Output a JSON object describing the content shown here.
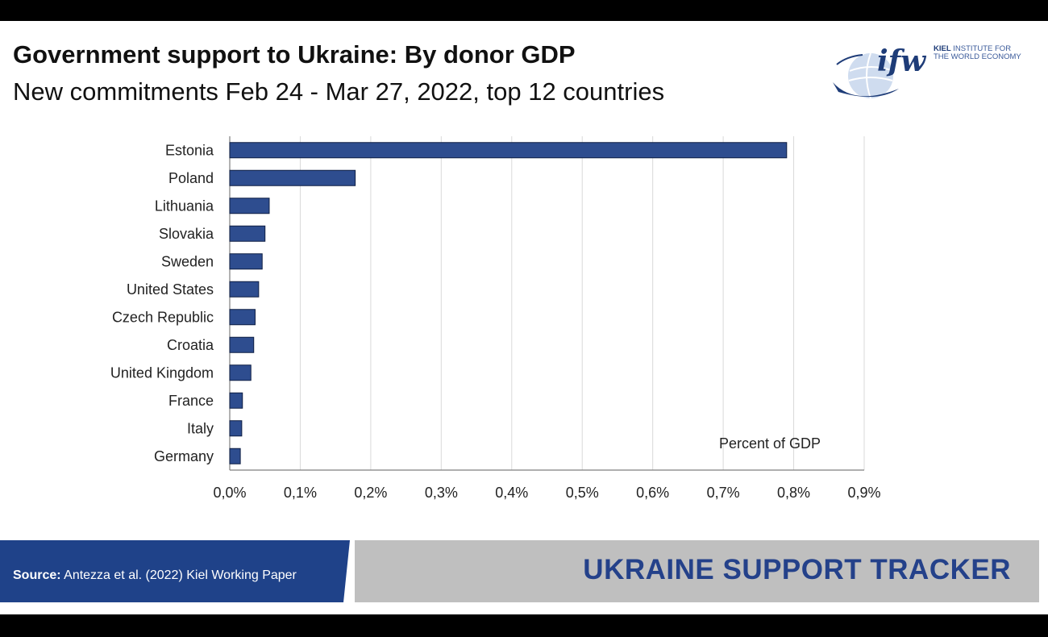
{
  "header": {
    "title": "Government support to Ukraine: By donor GDP",
    "subtitle": "New commitments Feb 24 - Mar 27, 2022, top 12 countries"
  },
  "logo": {
    "mark": "ifw",
    "org_bold": "KIEL",
    "org_line1_rest": "INSTITUTE FOR",
    "org_line2": "THE WORLD ECONOMY"
  },
  "footer": {
    "source_label": "Source:",
    "source_text": "Antezza et al. (2022) Kiel Working Paper",
    "tracker_label": "UKRAINE SUPPORT TRACKER"
  },
  "colors": {
    "bar": "#2e4d8f",
    "bar_outline": "#0f1f44",
    "grid": "#d9d9d9",
    "footer_blue": "#1f4289",
    "footer_grey": "#bfbfbf"
  },
  "chart_data": {
    "type": "bar",
    "orientation": "horizontal",
    "categories": [
      "Estonia",
      "Poland",
      "Lithuania",
      "Slovakia",
      "Sweden",
      "United States",
      "Czech Republic",
      "Croatia",
      "United Kingdom",
      "France",
      "Italy",
      "Germany"
    ],
    "values": [
      0.79,
      0.178,
      0.056,
      0.05,
      0.046,
      0.041,
      0.036,
      0.034,
      0.03,
      0.018,
      0.017,
      0.015
    ],
    "unit": "%",
    "xlim": [
      0,
      0.9
    ],
    "xticks": [
      "0,0%",
      "0,1%",
      "0,2%",
      "0,3%",
      "0,4%",
      "0,5%",
      "0,6%",
      "0,7%",
      "0,8%",
      "0,9%"
    ],
    "annotation": "Percent of GDP",
    "grid": true,
    "legend": false
  }
}
